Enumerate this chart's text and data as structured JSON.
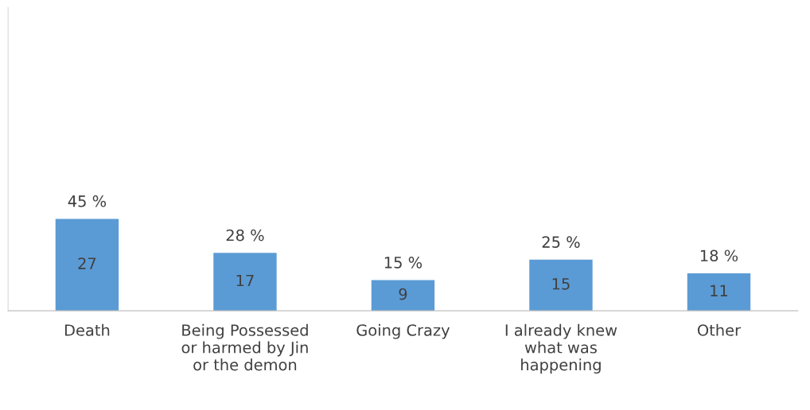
{
  "chart_data": {
    "type": "bar",
    "categories": [
      "Death",
      "Being Possessed\nor harmed by Jin\nor the demon",
      "Going Crazy",
      "I already knew\nwhat was\nhappening",
      "Other"
    ],
    "values": [
      27,
      17,
      9,
      15,
      11
    ],
    "color": "#5b9bd5",
    "data_labels": true,
    "grid": false,
    "annotations": [
      {
        "text": "45 %",
        "x": "Death",
        "y": 27
      },
      {
        "text": "28 %",
        "x": "Being Possessed\nor harmed by Jin\nor the demon",
        "y": 17
      },
      {
        "text": "15 %",
        "x": "Going Crazy",
        "y": 9
      },
      {
        "text": "25 %",
        "x": "I already knew\nwhat was\nhappening",
        "y": 15
      },
      {
        "text": "18 %",
        "x": "Other",
        "y": 11
      }
    ]
  }
}
